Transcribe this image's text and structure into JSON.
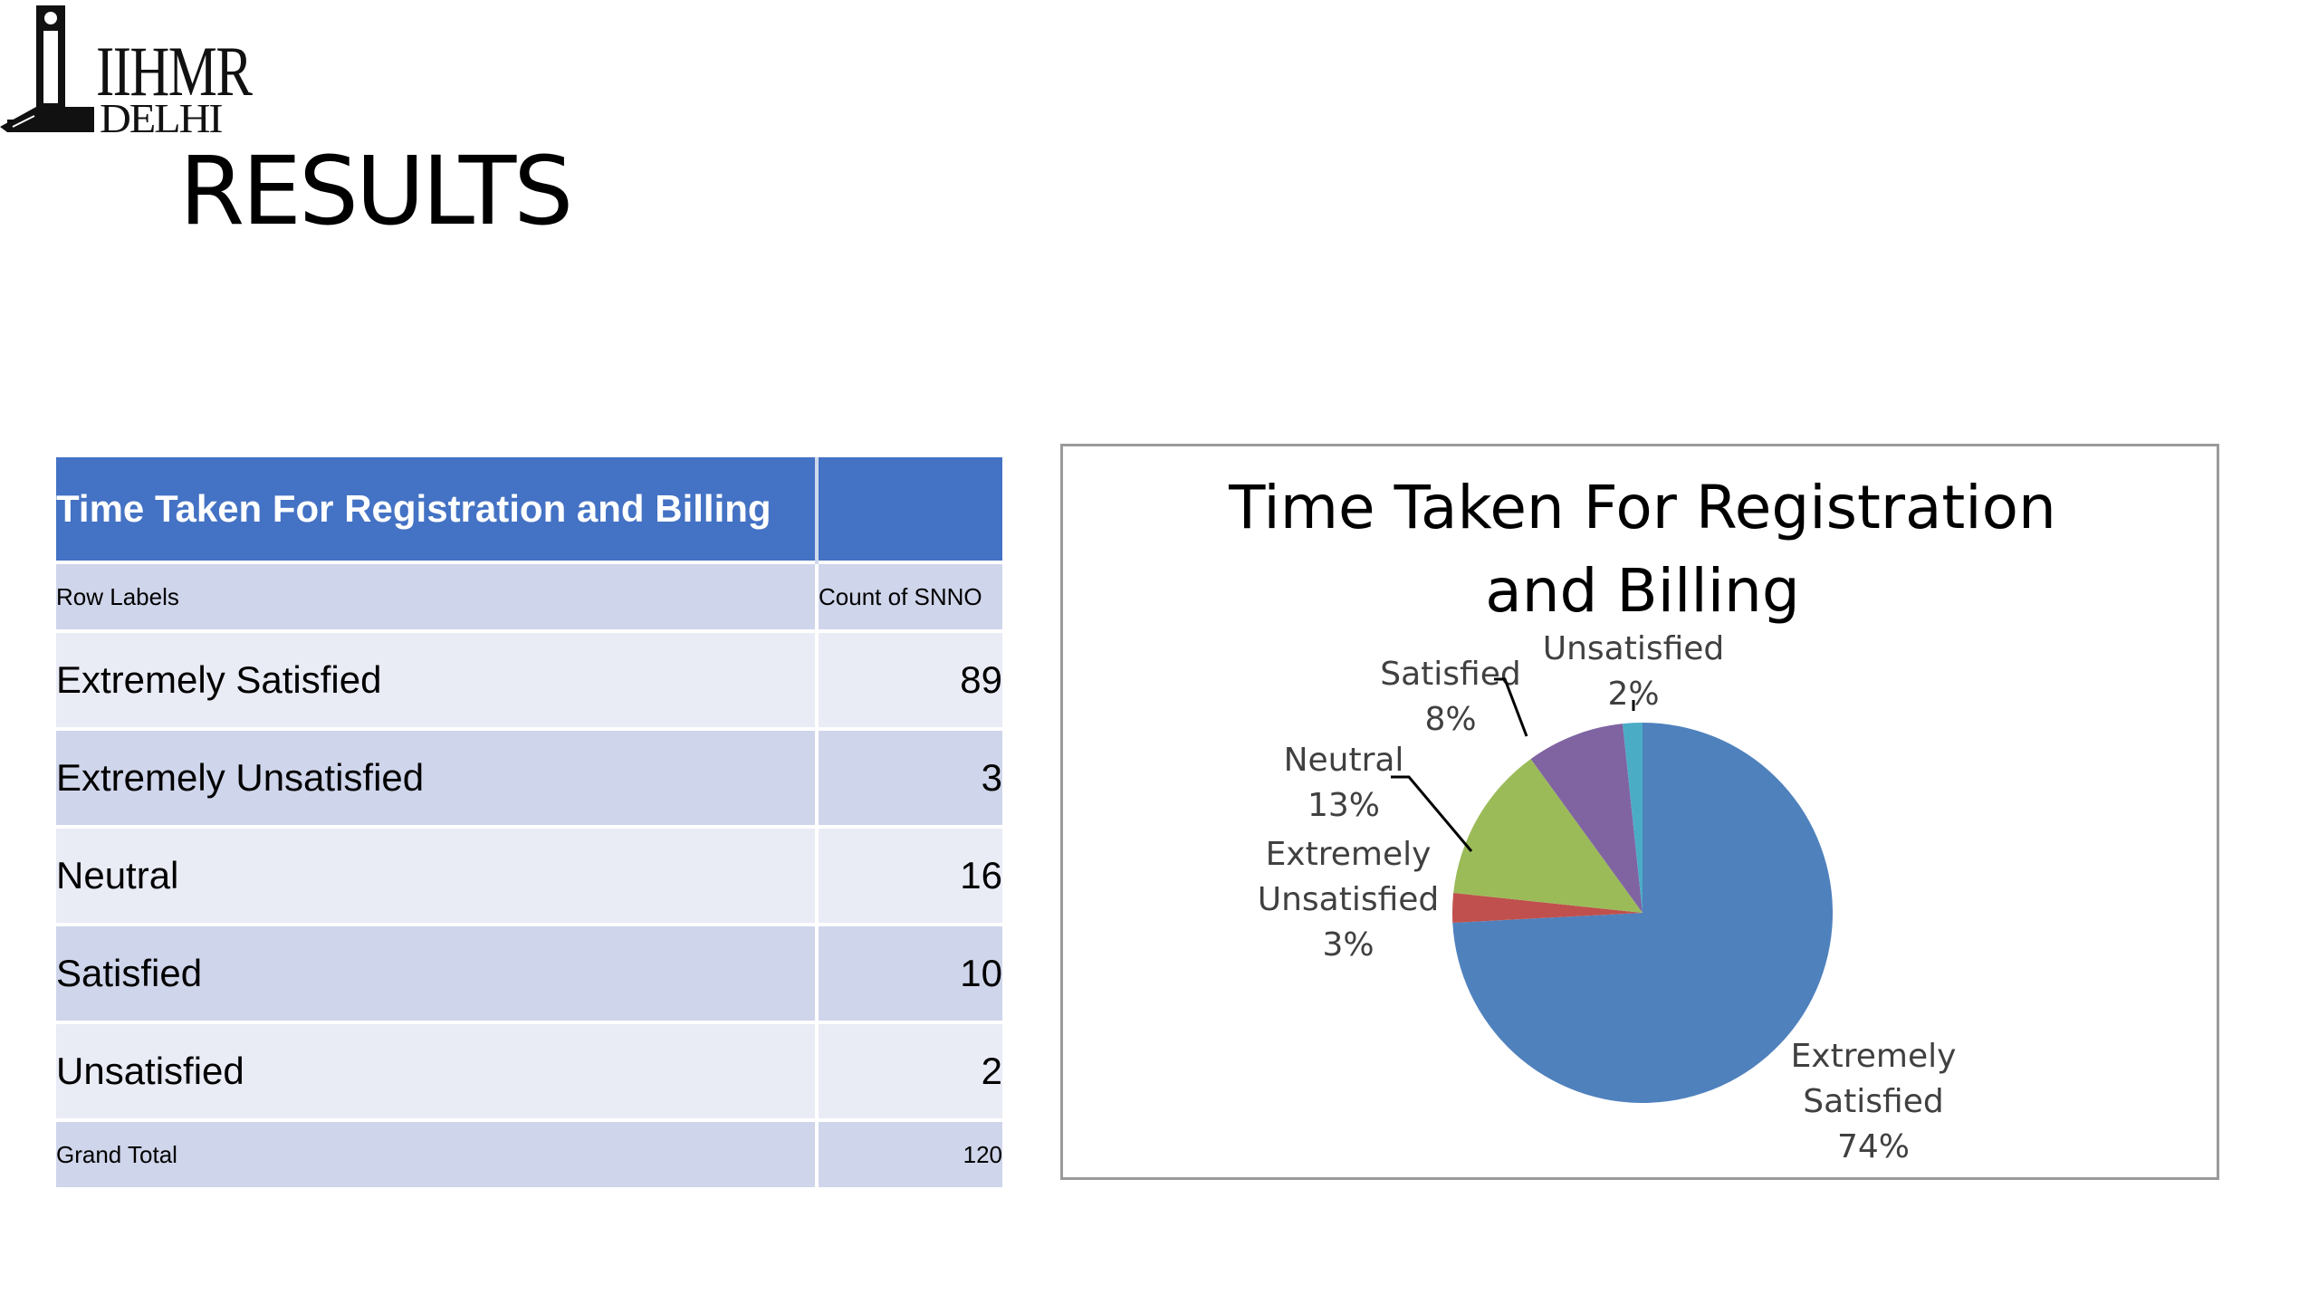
{
  "logo": {
    "line1": "IIHMR",
    "line2": "DELHI"
  },
  "page": {
    "title": "RESULTS"
  },
  "table": {
    "title": "Time Taken For Registration and Billing",
    "col_row_labels": "Row Labels",
    "col_count": "Count of SNNO",
    "rows": [
      {
        "label": "Extremely Satisfied",
        "value": "89"
      },
      {
        "label": "Extremely Unsatisfied",
        "value": "3"
      },
      {
        "label": "Neutral",
        "value": "16"
      },
      {
        "label": "Satisfied",
        "value": "10"
      },
      {
        "label": "Unsatisfied",
        "value": "2"
      }
    ],
    "total_label": "Grand Total",
    "total_value": "120"
  },
  "chart_data": {
    "type": "pie",
    "title": "Time Taken For Registration and Billing",
    "categories": [
      "Extremely Satisfied",
      "Extremely Unsatisfied",
      "Neutral",
      "Satisfied",
      "Unsatisfied"
    ],
    "values": [
      89,
      3,
      16,
      10,
      2
    ],
    "percent_labels": [
      "74%",
      "3%",
      "13%",
      "8%",
      "2%"
    ],
    "colors": [
      "#4f81bd",
      "#c0504d",
      "#9bbb59",
      "#8064a2",
      "#4bacc6"
    ],
    "legend": "none",
    "data_labels": "category name and percentage, outside with leader lines"
  }
}
